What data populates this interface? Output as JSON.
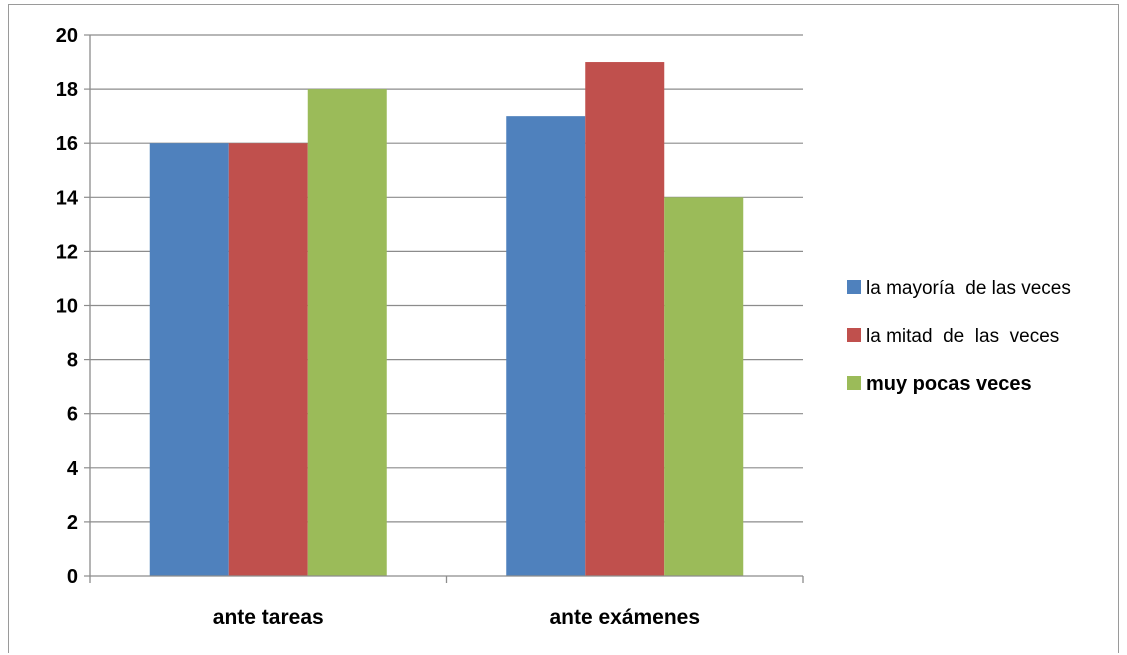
{
  "chart_data": {
    "type": "bar",
    "title": "",
    "xlabel": "",
    "ylabel": "",
    "categories": [
      "ante tareas",
      "ante exámenes"
    ],
    "series": [
      {
        "name": "la mayoría  de las veces",
        "values": [
          16,
          17
        ],
        "color": "#4f81bd"
      },
      {
        "name": "la mitad  de  las  veces",
        "values": [
          16,
          19
        ],
        "color": "#c0504d"
      },
      {
        "name": "muy pocas veces",
        "values": [
          18,
          14
        ],
        "color": "#9bbb59"
      }
    ],
    "ylim": [
      0,
      20
    ],
    "yticks": [
      0,
      2,
      4,
      6,
      8,
      10,
      12,
      14,
      16,
      18,
      20
    ],
    "grid": true,
    "legend": "right"
  }
}
